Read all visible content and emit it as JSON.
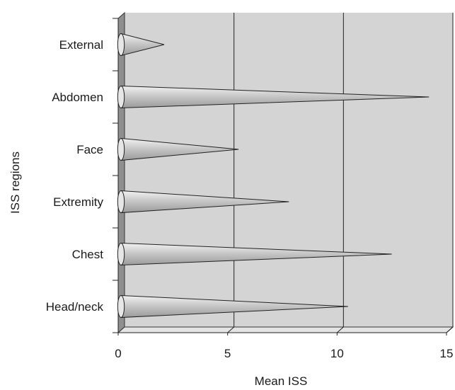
{
  "chart_data": {
    "type": "bar",
    "orientation": "horizontal",
    "bar_shape": "cone",
    "categories": [
      "Head/neck",
      "Chest",
      "Extremity",
      "Face",
      "Abdomen",
      "External"
    ],
    "values": [
      10.5,
      12.5,
      7.8,
      5.5,
      14.2,
      2.1
    ],
    "xlabel": "Mean ISS",
    "ylabel": "ISS regions",
    "xlim": [
      0,
      15
    ],
    "xticks": [
      0,
      5,
      10,
      15
    ],
    "xtick_labels": [
      "0",
      "5",
      "10",
      "15"
    ],
    "grid": "vertical",
    "legend": "none",
    "colors": {
      "plot_background": "#d4d4d4",
      "left_wall": "#8f8f8f",
      "floor": "#e4e4e4",
      "bar_light": "#f2f2f2",
      "bar_dark": "#9a9a9a",
      "gridline": "#222222"
    }
  }
}
